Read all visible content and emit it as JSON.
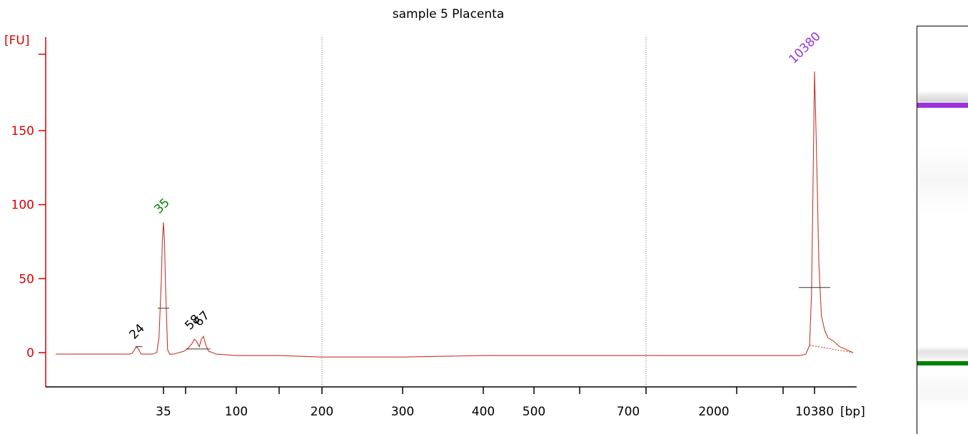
{
  "chart_data": {
    "type": "line",
    "title": "sample 5 Placenta",
    "ylabel": "[FU]",
    "xlabel": "[bp]",
    "ylim": [
      -20,
      180
    ],
    "y_ticks": [
      0,
      50,
      100,
      150
    ],
    "x_tick_labels": [
      "35",
      "100",
      "200",
      "300",
      "400",
      "500",
      "700",
      "2000",
      "10380"
    ],
    "peak_labels": [
      {
        "label": "24",
        "color": "#000000"
      },
      {
        "label": "35",
        "color": "#008000"
      },
      {
        "label": "58",
        "color": "#000000"
      },
      {
        "label": "67",
        "color": "#000000"
      },
      {
        "label": "10380",
        "color": "#9933dd"
      }
    ],
    "series": [
      {
        "color": "#c0392b",
        "x": [
          0,
          20,
          21,
          22,
          23,
          24,
          25,
          26,
          27,
          30,
          32,
          33,
          34,
          34.5,
          35,
          35.5,
          36,
          37,
          38,
          40,
          45,
          50,
          55,
          58,
          60,
          63,
          65,
          67,
          69,
          72,
          80,
          100,
          150,
          200,
          300,
          400,
          500,
          700,
          2000,
          5000,
          8000,
          9000,
          9600,
          9900,
          10200,
          10380,
          10600,
          10900,
          11200,
          11600,
          12000,
          12600,
          13400,
          14200,
          15000
        ],
        "y": [
          -1,
          -1,
          -0.5,
          2,
          4,
          2,
          -1,
          -1,
          -1,
          -1,
          0,
          10,
          48,
          75,
          88,
          75,
          45,
          2,
          -1,
          -1,
          1,
          3,
          6,
          9,
          8,
          4,
          9,
          11,
          6,
          1,
          -1,
          -2,
          -2,
          -3,
          -3,
          -2,
          -2,
          -2,
          -2,
          -2,
          -2,
          -1,
          5,
          40,
          130,
          190,
          140,
          60,
          25,
          15,
          10,
          8,
          4,
          2,
          0
        ]
      }
    ],
    "gel_bands": [
      {
        "size": "10380",
        "color": "#9933dd"
      },
      {
        "size": "35",
        "color": "#008000"
      }
    ]
  }
}
